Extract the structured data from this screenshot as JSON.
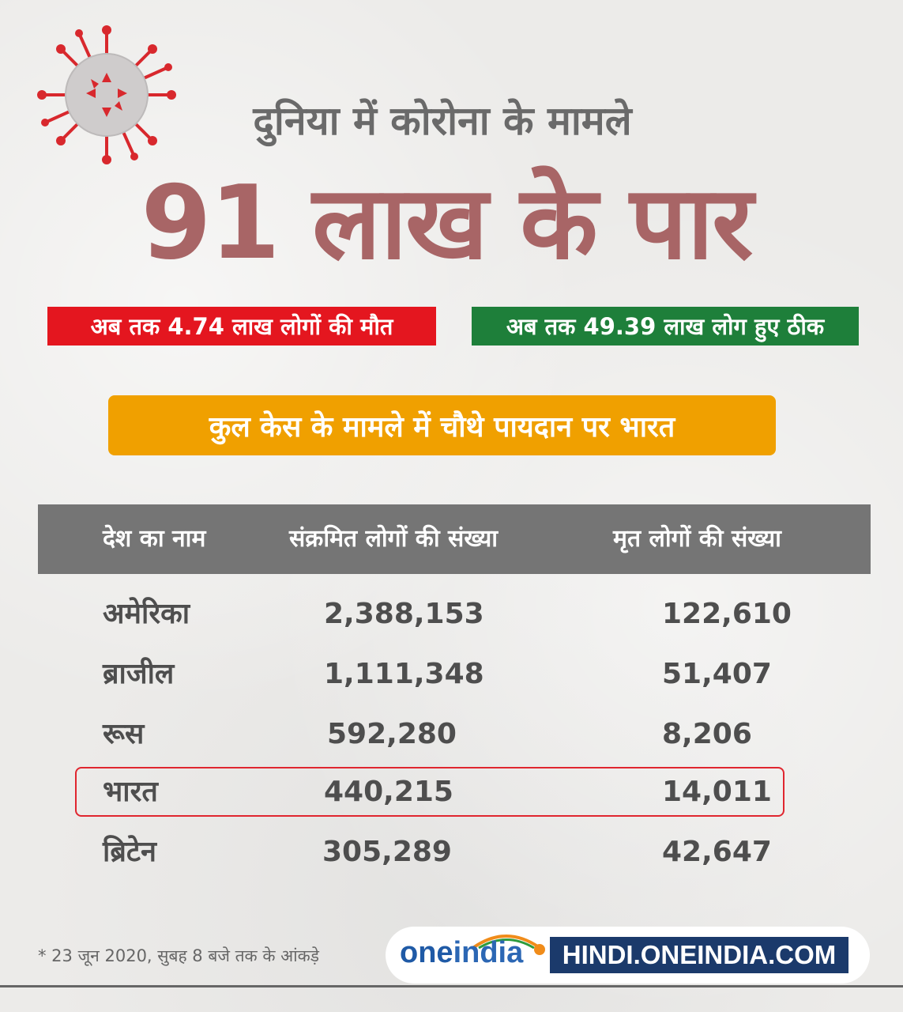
{
  "subtitle": "दुनिया में कोरोना के मामले",
  "headline": "91 लाख के पार",
  "deaths_text": "अब तक 4.74 लाख लोगों की मौत",
  "recovered_text": "अब तक 49.39 लाख लोग हुए ठीक",
  "rank_text": "कुल केस के मामले में चौथे पायदान पर भारत",
  "table": {
    "headers": [
      "देश का नाम",
      "संक्रमित लोगों की संख्या",
      "मृत लोगों की संख्या"
    ],
    "rows": [
      {
        "country": "अमेरिका",
        "infected": "2,388,153",
        "deaths": "122,610"
      },
      {
        "country": "ब्राजील",
        "infected": "1,111,348",
        "deaths": "51,407"
      },
      {
        "country": "रूस",
        "infected": "592,280",
        "deaths": "8,206"
      },
      {
        "country": "भारत",
        "infected": "440,215",
        "deaths": "14,011"
      },
      {
        "country": "ब्रिटेन",
        "infected": "305,289",
        "deaths": "42,647"
      }
    ]
  },
  "footnote": "* 23 जून 2020, सुबह 8 बजे तक के आंकड़े",
  "logo": {
    "one": "one",
    "india": "india"
  },
  "site": "HINDI.ONEINDIA.COM",
  "colors": {
    "headline": "#a86566",
    "deaths_bar": "#e4161f",
    "recovered_bar": "#1e7f3a",
    "banner": "#f0a000",
    "table_header": "#757575",
    "highlight_border": "#e0262f"
  }
}
